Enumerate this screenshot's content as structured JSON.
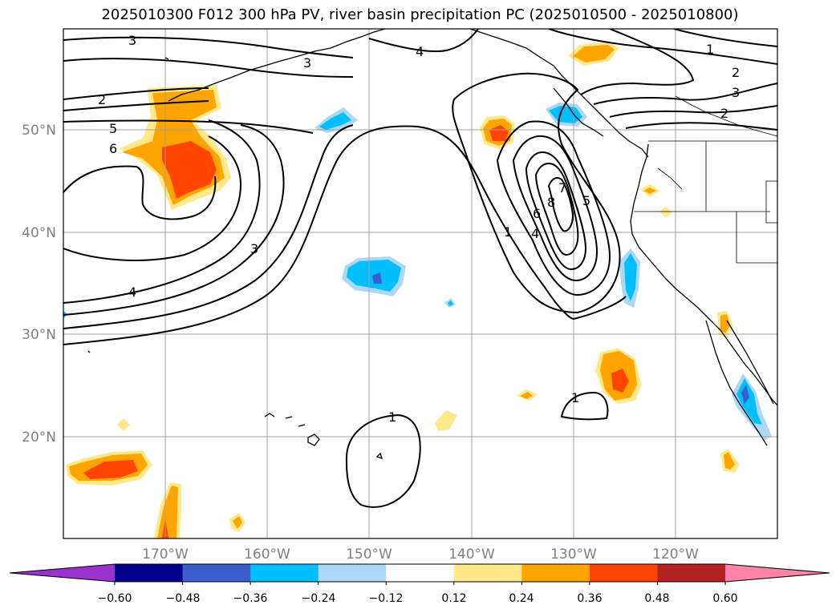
{
  "title": "2025010300 F012 300 hPa PV, river basin precipitation PC (2025010500 - 2025010800)",
  "longitude_labels": [
    "170°W",
    "160°W",
    "150°W",
    "140°W",
    "130°W",
    "120°W"
  ],
  "latitude_labels": [
    "50°N",
    "40°N",
    "30°N",
    "20°N"
  ],
  "pv_contour_labels": [
    "3",
    "3",
    "4",
    "2",
    "5",
    "6",
    "3",
    "4",
    "1",
    "2",
    "3",
    "2",
    "7",
    "6",
    "8",
    "4",
    "5",
    "1",
    "1",
    "1"
  ],
  "colorbar": {
    "tick_labels": [
      "−0.60",
      "−0.48",
      "−0.36",
      "−0.24",
      "−0.12",
      "0.12",
      "0.24",
      "0.36",
      "0.48",
      "0.60"
    ],
    "bin_colors": [
      "#9933cc",
      "#00008b",
      "#3a5fcd",
      "#00bfff",
      "#add8f5",
      "#ffffff",
      "#ffe98a",
      "#ffa500",
      "#ff4500",
      "#b22222",
      "#ff85a8"
    ]
  },
  "colors": {
    "pos_light": "#ffe98a",
    "pos_mid": "#ffa500",
    "pos_high": "#ff4500",
    "neg_light": "#add8f5",
    "neg_mid": "#00bfff",
    "neg_high": "#3a5fcd"
  }
}
